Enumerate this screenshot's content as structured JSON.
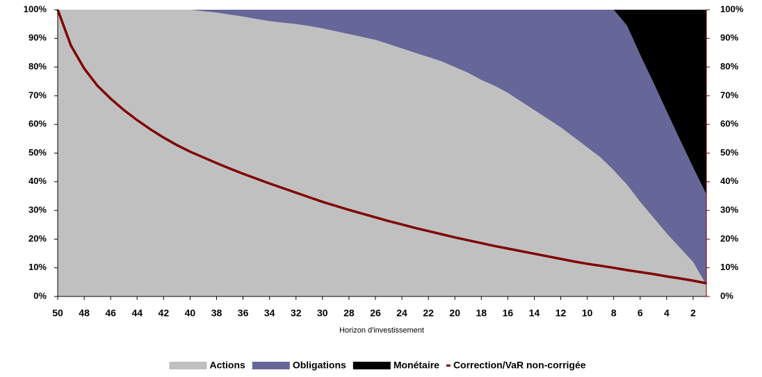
{
  "chart_data": {
    "type": "area",
    "stacked": true,
    "x_label": "Horizon d'investissement",
    "x": [
      50,
      49,
      48,
      47,
      46,
      45,
      44,
      43,
      42,
      41,
      40,
      39,
      38,
      37,
      36,
      35,
      34,
      33,
      32,
      31,
      30,
      29,
      28,
      27,
      26,
      25,
      24,
      23,
      22,
      21,
      20,
      19,
      18,
      17,
      16,
      15,
      14,
      13,
      12,
      11,
      10,
      9,
      8,
      7,
      6,
      5,
      4,
      3,
      2,
      1
    ],
    "xlim": [
      50,
      1
    ],
    "xticks": [
      50,
      48,
      46,
      44,
      42,
      40,
      38,
      36,
      34,
      32,
      30,
      28,
      26,
      24,
      22,
      20,
      18,
      16,
      14,
      12,
      10,
      8,
      6,
      4,
      2
    ],
    "ylim": [
      0,
      100
    ],
    "yticks": [
      {
        "value": 0,
        "label": "0%"
      },
      {
        "value": 10,
        "label": "10%"
      },
      {
        "value": 20,
        "label": "20%"
      },
      {
        "value": 30,
        "label": "30%"
      },
      {
        "value": 40,
        "label": "40%"
      },
      {
        "value": 50,
        "label": "50%"
      },
      {
        "value": 60,
        "label": "60%"
      },
      {
        "value": 70,
        "label": "70%"
      },
      {
        "value": 80,
        "label": "80%"
      },
      {
        "value": 90,
        "label": "90%"
      },
      {
        "value": 100,
        "label": "100%"
      }
    ],
    "y2lim": [
      0,
      100
    ],
    "y2ticks": [
      {
        "value": 0,
        "label": "0%"
      },
      {
        "value": 10,
        "label": "10%"
      },
      {
        "value": 20,
        "label": "20%"
      },
      {
        "value": 30,
        "label": "30%"
      },
      {
        "value": 40,
        "label": "40%"
      },
      {
        "value": 50,
        "label": "50%"
      },
      {
        "value": 60,
        "label": "60%"
      },
      {
        "value": 70,
        "label": "70%"
      },
      {
        "value": 80,
        "label": "80%"
      },
      {
        "value": 90,
        "label": "90%"
      },
      {
        "value": 100,
        "label": "100%"
      }
    ],
    "legend": "bottom",
    "series": [
      {
        "name": "Actions",
        "color": "#c0c0c0",
        "values": [
          100,
          100,
          100,
          100,
          100,
          100,
          100,
          100,
          100,
          100,
          100,
          99.5,
          99,
          98.3,
          97.6,
          96.8,
          96,
          95.5,
          95,
          94.3,
          93.5,
          92.5,
          91.5,
          90.5,
          89.5,
          88,
          86.5,
          85,
          83.5,
          82,
          80,
          78,
          75.5,
          73.5,
          71,
          68,
          65,
          62,
          59,
          55.5,
          52,
          48.5,
          44,
          39,
          33,
          27.5,
          22,
          17,
          12,
          4
        ]
      },
      {
        "name": "Obligations",
        "color": "#666699",
        "values": [
          0,
          0,
          0,
          0,
          0,
          0,
          0,
          0,
          0,
          0,
          0,
          0.5,
          1,
          1.7,
          2.4,
          3.2,
          4,
          4.5,
          5,
          5.7,
          6.5,
          7.5,
          8.5,
          9.5,
          10.5,
          12,
          13.5,
          15,
          16.5,
          18,
          20,
          22,
          24.5,
          26.5,
          29,
          32,
          35,
          38,
          41,
          44.5,
          48,
          51.5,
          56,
          55.5,
          51.3,
          47.1,
          42.6,
          37.7,
          33,
          31.6
        ]
      },
      {
        "name": "Monétaire",
        "color": "#000000",
        "values": [
          0,
          0,
          0,
          0,
          0,
          0,
          0,
          0,
          0,
          0,
          0,
          0,
          0,
          0,
          0,
          0,
          0,
          0,
          0,
          0,
          0,
          0,
          0,
          0,
          0,
          0,
          0,
          0,
          0,
          0,
          0,
          0,
          0,
          0,
          0,
          0,
          0,
          0,
          0,
          0,
          0,
          0,
          0,
          5.5,
          15.7,
          25.4,
          35.4,
          45.3,
          55,
          64.4
        ]
      },
      {
        "name": "Correction/VaR non-corrigée",
        "color": "#800000",
        "type": "line",
        "axis": "y2",
        "values": [
          100,
          87.5,
          79.5,
          73.5,
          69,
          65,
          61.5,
          58.3,
          55.4,
          52.8,
          50.5,
          48.5,
          46.5,
          44.6,
          42.8,
          41.1,
          39.4,
          37.8,
          36.2,
          34.6,
          33.0,
          31.6,
          30.2,
          28.9,
          27.6,
          26.3,
          25.1,
          23.9,
          22.8,
          21.7,
          20.6,
          19.6,
          18.6,
          17.6,
          16.7,
          15.8,
          14.9,
          14.0,
          13.1,
          12.2,
          11.4,
          10.7,
          10.0,
          9.2,
          8.5,
          7.8,
          7.0,
          6.3,
          5.5,
          4.6
        ]
      }
    ]
  }
}
